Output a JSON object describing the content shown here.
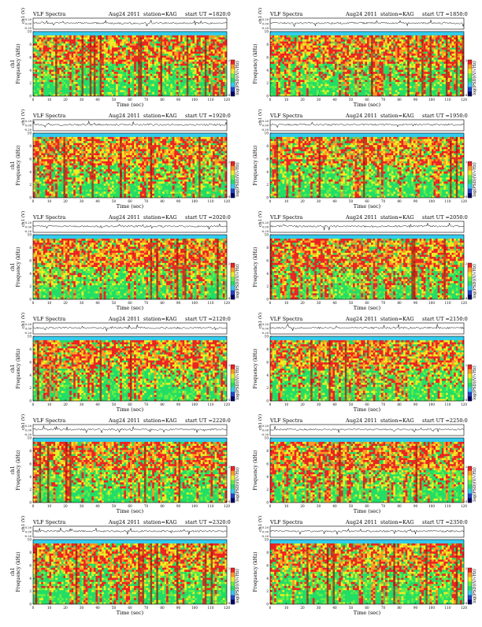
{
  "chart_data": [
    {
      "type": "heatmap",
      "title_left": "VLF Spectra",
      "date": "Aug24 2011",
      "station": "station=KAG",
      "start": "start UT =1820:0",
      "top_ylabel": "ch1 (V)",
      "top_ticks": [
        "0.20",
        "0.00",
        "-0.20"
      ],
      "ylabel": "Frequency (kHz)",
      "channel": "ch1",
      "xlabel": "Time (sec)",
      "x_ticks": [
        "0",
        "10",
        "20",
        "30",
        "40",
        "50",
        "60",
        "70",
        "80",
        "90",
        "100",
        "110",
        "120"
      ],
      "y_ticks": [
        "0",
        "2",
        "4",
        "6",
        "8",
        "10"
      ],
      "xlim": [
        0,
        120
      ],
      "ylim": [
        0,
        10
      ],
      "colorbar_label": "log(PSD)(V/√Hz)",
      "colorbar_ticks": [
        "2",
        "-4"
      ],
      "seed": 11
    },
    {
      "type": "heatmap",
      "title_left": "VLF Spectra",
      "date": "Aug24 2011",
      "station": "station=KAG",
      "start": "start UT =1850:0",
      "top_ylabel": "ch1 (V)",
      "top_ticks": [
        "0.20",
        "0.00",
        "-0.20"
      ],
      "ylabel": "Frequency (kHz)",
      "channel": "",
      "xlabel": "Time (sec)",
      "x_ticks": [
        "0",
        "10",
        "20",
        "30",
        "40",
        "50",
        "60",
        "70",
        "80",
        "90",
        "100",
        "110",
        "120"
      ],
      "y_ticks": [
        "0",
        "2",
        "4",
        "6",
        "8",
        "10"
      ],
      "xlim": [
        0,
        120
      ],
      "ylim": [
        0,
        10
      ],
      "colorbar_label": "log(PSD)(V/√Hz)",
      "colorbar_ticks": [
        "2",
        "-4"
      ],
      "seed": 23
    },
    {
      "type": "heatmap",
      "title_left": "VLF Spectra",
      "date": "Aug24 2011",
      "station": "station=KAG",
      "start": "start UT =1920:0",
      "top_ylabel": "ch1 (V)",
      "top_ticks": [
        "0.20",
        "0.00",
        "-0.20"
      ],
      "ylabel": "Frequency (kHz)",
      "channel": "ch1",
      "xlabel": "Time (sec)",
      "x_ticks": [
        "0",
        "10",
        "20",
        "30",
        "40",
        "50",
        "60",
        "70",
        "80",
        "90",
        "100",
        "110",
        "120"
      ],
      "y_ticks": [
        "0",
        "2",
        "4",
        "6",
        "8",
        "10"
      ],
      "xlim": [
        0,
        120
      ],
      "ylim": [
        0,
        10
      ],
      "colorbar_label": "log(PSD)(V/√Hz)",
      "colorbar_ticks": [
        "2",
        "-4"
      ],
      "seed": 37
    },
    {
      "type": "heatmap",
      "title_left": "VLF Spectra",
      "date": "Aug24 2011",
      "station": "station=KAG",
      "start": "start UT =1950:0",
      "top_ylabel": "ch1 (V)",
      "top_ticks": [
        "0.20",
        "0.00",
        "-0.20"
      ],
      "ylabel": "Frequency (kHz)",
      "channel": "",
      "xlabel": "Time (sec)",
      "x_ticks": [
        "0",
        "10",
        "20",
        "30",
        "40",
        "50",
        "60",
        "70",
        "80",
        "90",
        "100",
        "110",
        "120"
      ],
      "y_ticks": [
        "0",
        "2",
        "4",
        "6",
        "8",
        "10"
      ],
      "xlim": [
        0,
        120
      ],
      "ylim": [
        0,
        10
      ],
      "colorbar_label": "log(PSD)(V/√Hz)",
      "colorbar_ticks": [
        "2",
        "-4"
      ],
      "seed": 41
    },
    {
      "type": "heatmap",
      "title_left": "VLF Spectra",
      "date": "Aug24 2011",
      "station": "station=KAG",
      "start": "start UT =2020:0",
      "top_ylabel": "ch1 (V)",
      "top_ticks": [
        "0.20",
        "0.00",
        "-0.20"
      ],
      "ylabel": "Frequency (kHz)",
      "channel": "ch1",
      "xlabel": "Time (sec)",
      "x_ticks": [
        "0",
        "10",
        "20",
        "30",
        "40",
        "50",
        "60",
        "70",
        "80",
        "90",
        "100",
        "110",
        "120"
      ],
      "y_ticks": [
        "0",
        "2",
        "4",
        "6",
        "8",
        "10"
      ],
      "xlim": [
        0,
        120
      ],
      "ylim": [
        0,
        10
      ],
      "colorbar_label": "log(PSD)(V/√Hz)",
      "colorbar_ticks": [
        "2",
        "-4"
      ],
      "seed": 53
    },
    {
      "type": "heatmap",
      "title_left": "VLF Spectra",
      "date": "Aug24 2011",
      "station": "station=KAG",
      "start": "start UT =2050:0",
      "top_ylabel": "ch1 (V)",
      "top_ticks": [
        "0.20",
        "0.00",
        "-0.20"
      ],
      "ylabel": "Frequency (kHz)",
      "channel": "",
      "xlabel": "Time (sec)",
      "x_ticks": [
        "0",
        "10",
        "20",
        "30",
        "40",
        "50",
        "60",
        "70",
        "80",
        "90",
        "100",
        "110",
        "120"
      ],
      "y_ticks": [
        "0",
        "2",
        "4",
        "6",
        "8",
        "10"
      ],
      "xlim": [
        0,
        120
      ],
      "ylim": [
        0,
        10
      ],
      "colorbar_label": "log(PSD)(V/√Hz)",
      "colorbar_ticks": [
        "2",
        "-4"
      ],
      "seed": 67
    },
    {
      "type": "heatmap",
      "title_left": "VLF Spectra",
      "date": "Aug24 2011",
      "station": "station=KAG",
      "start": "start UT =2120:0",
      "top_ylabel": "ch1 (V)",
      "top_ticks": [
        "0.20",
        "0.00",
        "-0.20"
      ],
      "ylabel": "Frequency (kHz)",
      "channel": "ch1",
      "xlabel": "Time (sec)",
      "x_ticks": [
        "0",
        "10",
        "20",
        "30",
        "40",
        "50",
        "60",
        "70",
        "80",
        "90",
        "100",
        "110",
        "120"
      ],
      "y_ticks": [
        "0",
        "2",
        "4",
        "6",
        "8",
        "10"
      ],
      "xlim": [
        0,
        120
      ],
      "ylim": [
        0,
        10
      ],
      "colorbar_label": "log(PSD)(V/√Hz)",
      "colorbar_ticks": [
        "2",
        "-4"
      ],
      "seed": 71
    },
    {
      "type": "heatmap",
      "title_left": "VLF Spectra",
      "date": "Aug24 2011",
      "station": "station=KAG",
      "start": "start UT =2150:0",
      "top_ylabel": "ch1 (V)",
      "top_ticks": [
        "0.20",
        "0.00",
        "-0.20"
      ],
      "ylabel": "Frequency (kHz)",
      "channel": "",
      "xlabel": "Time (sec)",
      "x_ticks": [
        "0",
        "10",
        "20",
        "30",
        "40",
        "50",
        "60",
        "70",
        "80",
        "90",
        "100",
        "110",
        "120"
      ],
      "y_ticks": [
        "0",
        "2",
        "4",
        "6",
        "8",
        "10"
      ],
      "xlim": [
        0,
        120
      ],
      "ylim": [
        0,
        10
      ],
      "colorbar_label": "log(PSD)(V/√Hz)",
      "colorbar_ticks": [
        "2",
        "-4"
      ],
      "seed": 83
    },
    {
      "type": "heatmap",
      "title_left": "VLF Spectra",
      "date": "Aug24 2011",
      "station": "station=KAG",
      "start": "start UT =2220:0",
      "top_ylabel": "ch1 (V)",
      "top_ticks": [
        "0.20",
        "0.00",
        "-0.20"
      ],
      "ylabel": "Frequency (kHz)",
      "channel": "ch1",
      "xlabel": "Time (sec)",
      "x_ticks": [
        "0",
        "10",
        "20",
        "30",
        "40",
        "50",
        "60",
        "70",
        "80",
        "90",
        "100",
        "110",
        "120"
      ],
      "y_ticks": [
        "0",
        "2",
        "4",
        "6",
        "8",
        "10"
      ],
      "xlim": [
        0,
        120
      ],
      "ylim": [
        0,
        10
      ],
      "colorbar_label": "log(PSD)(V/√Hz)",
      "colorbar_ticks": [
        "2",
        "-4"
      ],
      "seed": 97
    },
    {
      "type": "heatmap",
      "title_left": "VLF Spectra",
      "date": "Aug24 2011",
      "station": "station=KAG",
      "start": "start UT =2250:0",
      "top_ylabel": "ch1 (V)",
      "top_ticks": [
        "0.20",
        "0.00",
        "-0.20"
      ],
      "ylabel": "Frequency (kHz)",
      "channel": "",
      "xlabel": "Time (sec)",
      "x_ticks": [
        "0",
        "10",
        "20",
        "30",
        "40",
        "50",
        "60",
        "70",
        "80",
        "90",
        "100",
        "110",
        "120"
      ],
      "y_ticks": [
        "0",
        "2",
        "4",
        "6",
        "8",
        "10"
      ],
      "xlim": [
        0,
        120
      ],
      "ylim": [
        0,
        10
      ],
      "colorbar_label": "log(PSD)(V/√Hz)",
      "colorbar_ticks": [
        "2",
        "-4"
      ],
      "seed": 101
    },
    {
      "type": "heatmap",
      "title_left": "VLF Spectra",
      "date": "Aug24 2011",
      "station": "station=KAG",
      "start": "start UT =2320:0",
      "top_ylabel": "ch1 (V)",
      "top_ticks": [
        "0.20",
        "0.00",
        "-0.20"
      ],
      "ylabel": "Frequency (kHz)",
      "channel": "ch1",
      "xlabel": "Time (sec)",
      "x_ticks": [
        "0",
        "10",
        "20",
        "30",
        "40",
        "50",
        "60",
        "70",
        "80",
        "90",
        "100",
        "110",
        "120"
      ],
      "y_ticks": [
        "0",
        "2",
        "4",
        "6",
        "8",
        "10"
      ],
      "xlim": [
        0,
        120
      ],
      "ylim": [
        0,
        10
      ],
      "colorbar_label": "log(PSD)(V/√Hz)",
      "colorbar_ticks": [
        "2",
        "-4"
      ],
      "seed": 113
    },
    {
      "type": "heatmap",
      "title_left": "VLF Spectra",
      "date": "Aug24 2011",
      "station": "station=KAG",
      "start": "start UT =2350:0",
      "top_ylabel": "ch1 (V)",
      "top_ticks": [
        "0.20",
        "0.00",
        "-0.20"
      ],
      "ylabel": "Frequency (kHz)",
      "channel": "",
      "xlabel": "Time (sec)",
      "x_ticks": [
        "0",
        "10",
        "20",
        "30",
        "40",
        "50",
        "60",
        "70",
        "80",
        "90",
        "100",
        "110",
        "120"
      ],
      "y_ticks": [
        "0",
        "2",
        "4",
        "6",
        "8",
        "10"
      ],
      "xlim": [
        0,
        120
      ],
      "ylim": [
        0,
        10
      ],
      "colorbar_label": "log(PSD)(V/√Hz)",
      "colorbar_ticks": [
        "2",
        "-4"
      ],
      "seed": 127
    }
  ],
  "colors": {
    "cyan": "#33ccee",
    "green": "#22dd66",
    "lightgreen": "#66ee44",
    "yellow": "#eeee22",
    "orange": "#ff9922",
    "red": "#ee2222",
    "darkred": "#aa1111",
    "blue": "#2244cc",
    "navy": "#000066"
  }
}
